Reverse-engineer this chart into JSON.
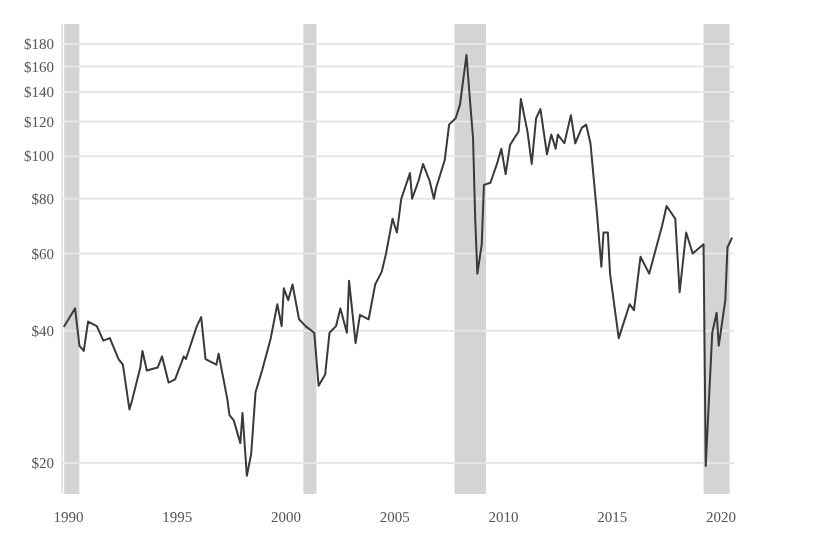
{
  "chart_data": {
    "type": "line",
    "log": "y",
    "grid": "y",
    "marker": "none",
    "line_style": "solid",
    "x": [
      1989.8,
      1990.3,
      1990.5,
      1990.7,
      1990.9,
      1991.3,
      1991.6,
      1991.9,
      1992.3,
      1992.5,
      1992.8,
      1992.9,
      1993.3,
      1993.4,
      1993.6,
      1994.1,
      1994.3,
      1994.6,
      1994.9,
      1995.3,
      1995.4,
      1995.9,
      1996.1,
      1996.3,
      1996.8,
      1996.9,
      1997.3,
      1997.4,
      1997.6,
      1997.9,
      1998.0,
      1998.2,
      1998.4,
      1998.6,
      1998.9,
      1999.3,
      1999.6,
      1999.8,
      1999.9,
      2000.1,
      2000.3,
      2000.6,
      2000.9,
      2001.3,
      2001.5,
      2001.8,
      2002.0,
      2002.3,
      2002.5,
      2002.8,
      2002.9,
      2003.2,
      2003.4,
      2003.8,
      2004.1,
      2004.4,
      2004.6,
      2004.9,
      2005.1,
      2005.3,
      2005.7,
      2005.8,
      2006.1,
      2006.3,
      2006.6,
      2006.8,
      2006.9,
      2007.3,
      2007.5,
      2007.8,
      2008.0,
      2008.3,
      2008.4,
      2008.6,
      2008.7,
      2008.8,
      2009.0,
      2009.1,
      2009.4,
      2009.7,
      2009.9,
      2010.1,
      2010.3,
      2010.7,
      2010.8,
      2011.1,
      2011.3,
      2011.5,
      2011.7,
      2012.0,
      2012.2,
      2012.4,
      2012.5,
      2012.8,
      2013.1,
      2013.3,
      2013.6,
      2013.8,
      2014.0,
      2014.3,
      2014.5,
      2014.6,
      2014.8,
      2014.9,
      2015.3,
      2015.8,
      2016.0,
      2016.3,
      2016.7,
      2017.3,
      2017.5,
      2017.9,
      2018.1,
      2018.4,
      2018.7,
      2019.2,
      2019.3,
      2019.6,
      2019.8,
      2019.9,
      2020.2,
      2020.3,
      2020.5
    ],
    "series": [
      {
        "color": "#3a3a3a",
        "values": [
          41,
          45,
          37,
          36,
          42,
          41,
          38,
          38.5,
          34.5,
          33.5,
          26.5,
          27.5,
          33,
          36,
          32.5,
          33,
          35,
          30.5,
          31,
          35,
          34.5,
          41,
          43,
          34.5,
          33.5,
          35.5,
          28,
          25.7,
          25,
          22.2,
          26,
          18.7,
          21,
          29,
          32.5,
          38.5,
          46,
          41,
          50,
          47,
          51,
          42.5,
          41,
          39.6,
          30,
          31.8,
          39.6,
          41,
          45,
          39.6,
          52,
          37.5,
          43.5,
          42.5,
          51,
          54.5,
          60,
          72,
          67,
          80,
          91.5,
          80,
          88,
          96,
          88,
          80,
          84.6,
          98,
          118,
          122,
          131,
          170,
          146,
          110,
          72,
          54,
          63,
          86,
          87,
          96,
          104,
          91,
          106,
          114,
          135,
          114,
          96,
          122,
          128,
          101,
          112,
          104,
          112,
          107,
          124,
          107,
          116,
          118,
          107,
          74,
          56,
          67,
          67,
          54,
          38.5,
          46,
          44.6,
          59,
          54,
          69.6,
          77,
          72,
          49,
          67,
          60,
          63,
          19.7,
          39.6,
          44,
          37,
          47,
          62,
          65
        ]
      }
    ],
    "xlim": [
      1989.7,
      2020.6
    ],
    "xticks": [
      1990,
      1995,
      2000,
      2005,
      2010,
      2015,
      2020
    ],
    "ylim": [
      17,
      200
    ],
    "yticks": [
      {
        "value": 20,
        "label": "$20"
      },
      {
        "value": 40,
        "label": "$40"
      },
      {
        "value": 60,
        "label": "$60"
      },
      {
        "value": 80,
        "label": "$80"
      },
      {
        "value": 100,
        "label": "$100"
      },
      {
        "value": 120,
        "label": "$120"
      },
      {
        "value": 140,
        "label": "$140"
      },
      {
        "value": 160,
        "label": "$160"
      },
      {
        "value": 180,
        "label": "$180"
      }
    ],
    "bands": [
      {
        "axis": "x",
        "from": 1989.8,
        "to": 1990.5,
        "color": "#d4d4d4"
      },
      {
        "axis": "x",
        "from": 2000.8,
        "to": 2001.4,
        "color": "#d4d4d4"
      },
      {
        "axis": "x",
        "from": 2007.75,
        "to": 2009.2,
        "color": "#d4d4d4"
      },
      {
        "axis": "x",
        "from": 2019.2,
        "to": 2020.4,
        "color": "#d4d4d4"
      }
    ]
  }
}
